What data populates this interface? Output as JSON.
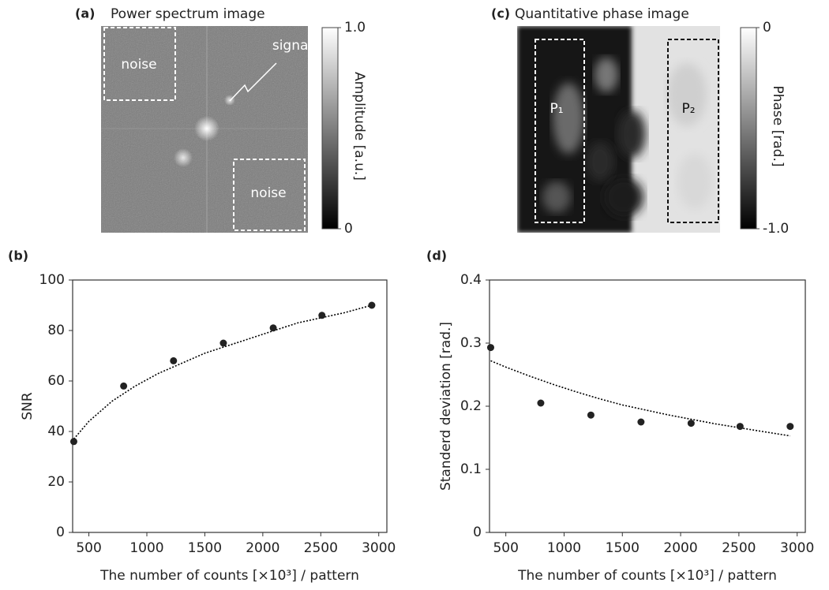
{
  "chart_data": [
    {
      "type": "image",
      "panel": "(a)",
      "title": "Power spectrum image",
      "annotations": [
        "noise",
        "noise",
        "signal"
      ],
      "colorbar": {
        "lim": [
          0,
          1
        ],
        "ticks": [
          {
            "value": 1,
            "label": "1.0"
          },
          0
        ],
        "label": "Amplitude [a.u.]"
      }
    },
    {
      "type": "scatter",
      "panel": "(b)",
      "xlabel": "The number of counts [×10³] / pattern",
      "ylabel": "SNR",
      "x": [
        370,
        800,
        1230,
        1660,
        2090,
        2510,
        2940
      ],
      "values": [
        36,
        58,
        68,
        75,
        81,
        86,
        90
      ],
      "color": "#222222",
      "fit": {
        "x": [
          370,
          500,
          700,
          900,
          1100,
          1300,
          1500,
          1700,
          1900,
          2100,
          2300,
          2500,
          2700,
          2940
        ],
        "values": [
          37,
          44,
          52,
          58,
          63,
          67,
          71,
          74,
          77,
          80,
          83,
          85,
          87,
          90
        ],
        "color": "#000000"
      },
      "xlim": [
        360,
        3070
      ],
      "xticks": [
        500,
        1000,
        1500,
        2000,
        2500,
        3000
      ],
      "ylim": [
        0,
        100
      ],
      "yticks": [
        0,
        20,
        40,
        60,
        80,
        100
      ]
    },
    {
      "type": "image",
      "panel": "(c)",
      "title": "Quantitative phase image",
      "annotations": [
        "P₁",
        "P₂"
      ],
      "colorbar": {
        "lim": [
          -1,
          0
        ],
        "ticks": [
          0,
          {
            "value": -1,
            "label": "-1.0"
          }
        ],
        "label": "Phase [rad.]"
      }
    },
    {
      "type": "scatter",
      "panel": "(d)",
      "xlabel": "The number of counts [×10³] / pattern",
      "ylabel": "Standerd deviation [rad.]",
      "x": [
        370,
        800,
        1230,
        1660,
        2090,
        2510,
        2940
      ],
      "values": [
        0.293,
        0.205,
        0.186,
        0.175,
        0.173,
        0.168,
        0.168
      ],
      "color": "#222222",
      "fit": {
        "x": [
          370,
          500,
          700,
          900,
          1100,
          1300,
          1500,
          1700,
          1900,
          2100,
          2300,
          2500,
          2700,
          2940
        ],
        "values": [
          0.272,
          0.262,
          0.248,
          0.235,
          0.223,
          0.212,
          0.202,
          0.194,
          0.186,
          0.179,
          0.172,
          0.166,
          0.16,
          0.153
        ],
        "color": "#000000"
      },
      "xlim": [
        360,
        3070
      ],
      "xticks": [
        500,
        1000,
        1500,
        2000,
        2500,
        3000
      ],
      "ylim": [
        0,
        0.4
      ],
      "yticks": [
        0,
        0.1,
        0.2,
        0.3,
        0.4
      ]
    }
  ]
}
